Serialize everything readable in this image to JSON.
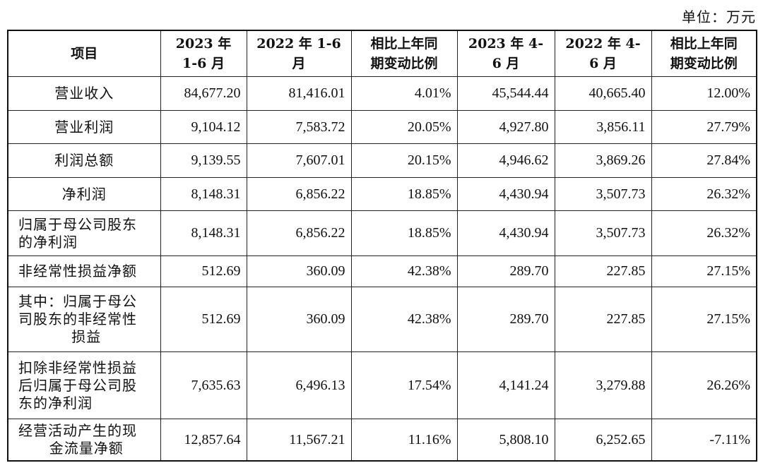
{
  "unit_label": "单位：万元",
  "table": {
    "headers": [
      [
        "项目"
      ],
      [
        "2023 年",
        "1-6 月"
      ],
      [
        "2022 年 1-6",
        "月"
      ],
      [
        "相比上年同",
        "期变动比例"
      ],
      [
        "2023 年 4-",
        "6 月"
      ],
      [
        "2022 年 4-",
        "6 月"
      ],
      [
        "相比上年同",
        "期变动比例"
      ]
    ],
    "rows": [
      {
        "label_lines": [
          "营业收入"
        ],
        "values": [
          "84,677.20",
          "81,416.01",
          "4.01%",
          "45,544.44",
          "40,665.40",
          "12.00%"
        ]
      },
      {
        "label_lines": [
          "营业利润"
        ],
        "values": [
          "9,104.12",
          "7,583.72",
          "20.05%",
          "4,927.80",
          "3,856.11",
          "27.79%"
        ]
      },
      {
        "label_lines": [
          "利润总额"
        ],
        "values": [
          "9,139.55",
          "7,607.01",
          "20.15%",
          "4,946.62",
          "3,869.26",
          "27.84%"
        ]
      },
      {
        "label_lines": [
          "净利润"
        ],
        "values": [
          "8,148.31",
          "6,856.22",
          "18.85%",
          "4,430.94",
          "3,507.73",
          "26.32%"
        ]
      },
      {
        "label_lines": [
          "归属于母公司股东",
          "的净利润"
        ],
        "values": [
          "8,148.31",
          "6,856.22",
          "18.85%",
          "4,430.94",
          "3,507.73",
          "26.32%"
        ]
      },
      {
        "label_lines": [
          "非经常性损益净额"
        ],
        "values": [
          "512.69",
          "360.09",
          "42.38%",
          "289.70",
          "227.85",
          "27.15%"
        ]
      },
      {
        "label_lines": [
          "其中：归属于母公",
          "司股东的非经常性",
          "损益"
        ],
        "values": [
          "512.69",
          "360.09",
          "42.38%",
          "289.70",
          "227.85",
          "27.15%"
        ]
      },
      {
        "label_lines": [
          "扣除非经常性损益",
          "后归属于母公司股",
          "东的净利润"
        ],
        "values": [
          "7,635.63",
          "6,496.13",
          "17.54%",
          "4,141.24",
          "3,279.88",
          "26.26%"
        ]
      },
      {
        "label_lines": [
          "经营活动产生的现",
          "金流量净额"
        ],
        "values": [
          "12,857.64",
          "11,567.21",
          "11.16%",
          "5,808.10",
          "6,252.65",
          "-7.11%"
        ]
      }
    ]
  }
}
